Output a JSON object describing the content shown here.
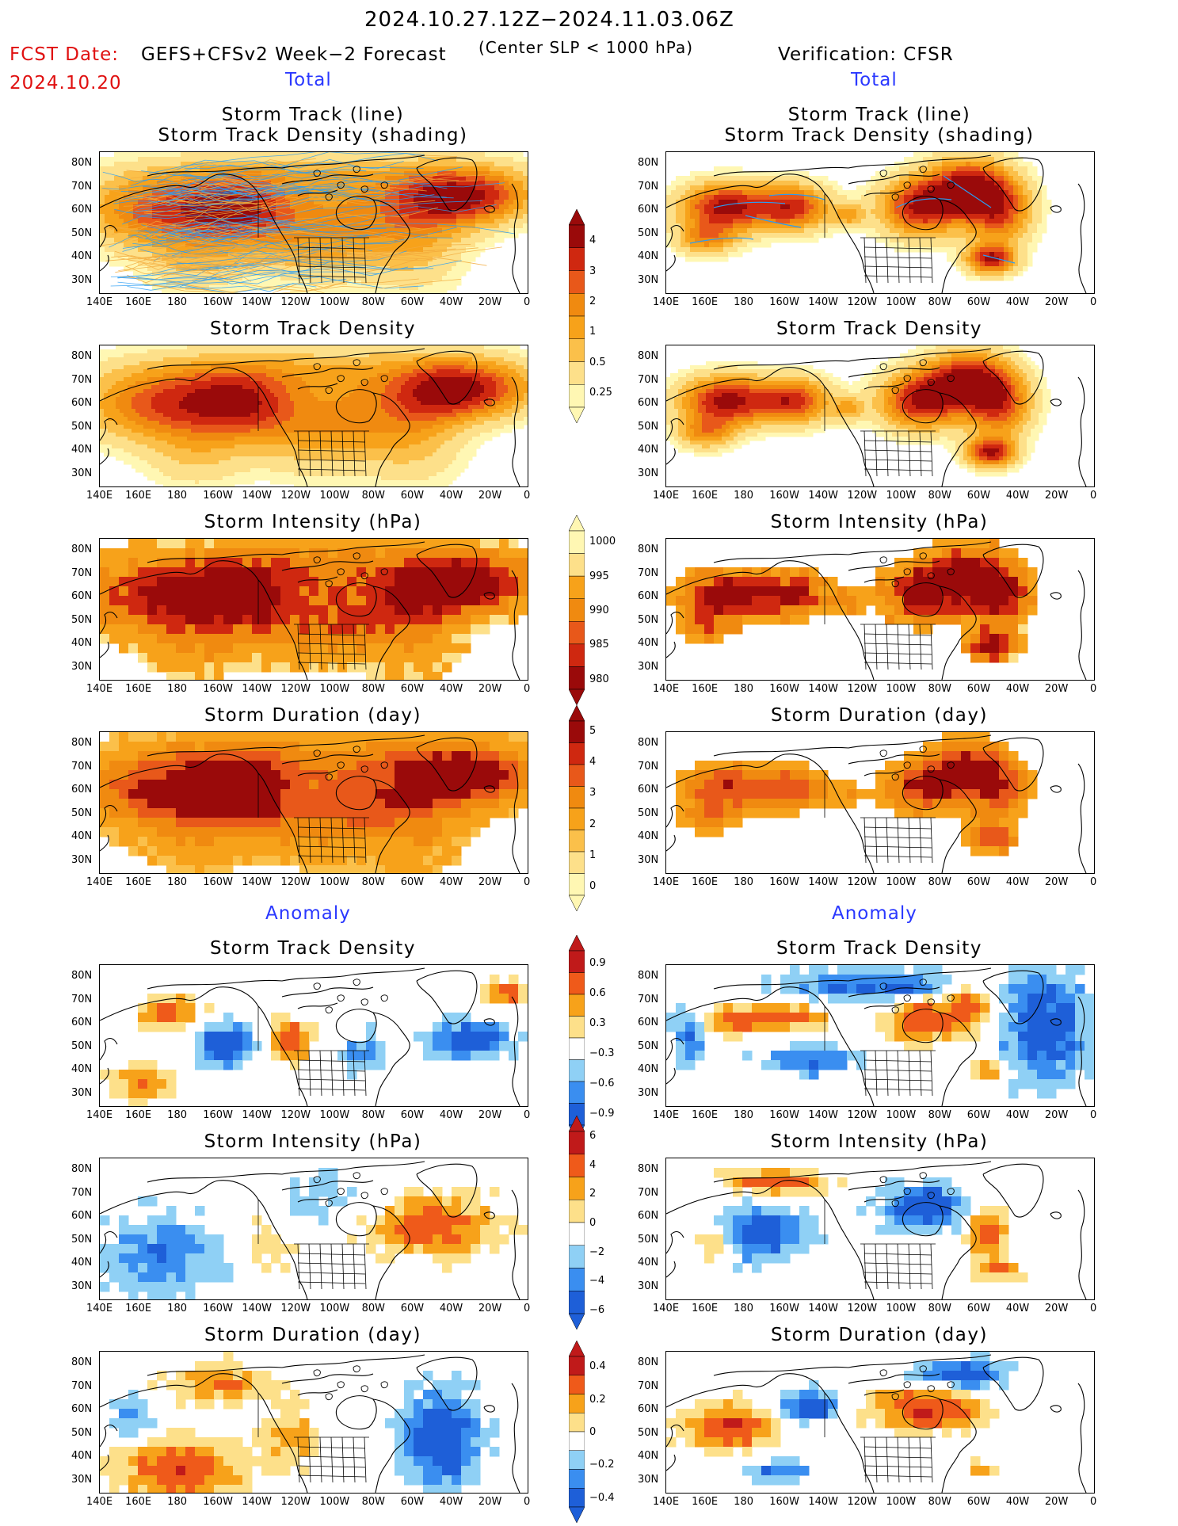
{
  "header": {
    "period": "2024.10.27.12Z−2024.11.03.06Z",
    "fcst_label": "FCST Date:",
    "fcst_date": "2024.10.20",
    "model": "GEFS+CFSv2 Week−2 Forecast",
    "subtitle": "(Center SLP < 1000 hPa)",
    "verification": "Verification: CFSR"
  },
  "sections": {
    "total_left": "Total",
    "total_right": "Total",
    "anomaly_left": "Anomaly",
    "anomaly_right": "Anomaly"
  },
  "panel_titles": {
    "track_line": "Storm Track (line)",
    "track_density_shading": "Storm Track Density (shading)",
    "track_density": "Storm Track Density",
    "intensity": "Storm Intensity (hPa)",
    "duration": "Storm Duration (day)"
  },
  "axes": {
    "lon_labels": [
      "140E",
      "160E",
      "180",
      "160W",
      "140W",
      "120W",
      "100W",
      "80W",
      "60W",
      "40W",
      "20W",
      "0"
    ],
    "lat_labels": [
      "80N",
      "70N",
      "60N",
      "50N",
      "40N",
      "30N"
    ]
  },
  "colorbars": {
    "density": [
      "4",
      "3",
      "2",
      "1",
      "0.5",
      "0.25"
    ],
    "intensity": [
      "1000",
      "995",
      "990",
      "985",
      "980"
    ],
    "duration": [
      "5",
      "4",
      "3",
      "2",
      "1",
      "0"
    ],
    "density_anom": [
      "0.9",
      "0.6",
      "0.3",
      "−0.3",
      "−0.6",
      "−0.9"
    ],
    "intensity_anom": [
      "6",
      "4",
      "2",
      "0",
      "−2",
      "−4",
      "−6"
    ],
    "duration_anom": [
      "0.4",
      "0.2",
      "0",
      "−0.2",
      "−0.4"
    ]
  },
  "colors": {
    "total_scale": [
      "#fff7b3",
      "#fde08a",
      "#fbc04a",
      "#f7a21a",
      "#f08a10",
      "#e8581a",
      "#cf2810",
      "#9a0a0a"
    ],
    "anom_scale": [
      "#1e5fd8",
      "#3a8ef0",
      "#8fd0f5",
      "#ffffff",
      "#fde08a",
      "#f7a21a",
      "#ef5a1a",
      "#c01a1a"
    ],
    "fcst_red": "#e01010",
    "section_blue": "#2a38ff",
    "track_blue": "#2a9df4",
    "track_orange": "#f2a93b"
  }
}
